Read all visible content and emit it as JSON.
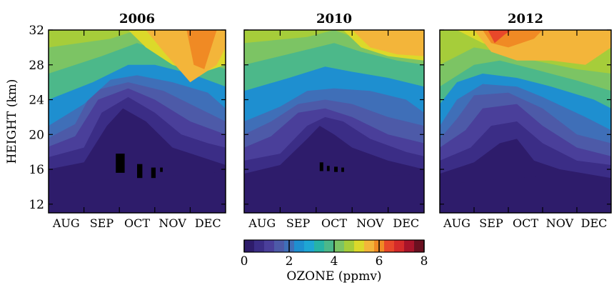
{
  "chart_data": {
    "type": "heatmap",
    "panels": [
      {
        "title": "2006"
      },
      {
        "title": "2010"
      },
      {
        "title": "2012"
      }
    ],
    "ylabel": "HEIGHT (km)",
    "ylim": [
      11,
      32
    ],
    "y_ticks": [
      12,
      16,
      20,
      24,
      28,
      32
    ],
    "x_ticks": [
      "AUG",
      "SEP",
      "OCT",
      "NOV",
      "DEC"
    ],
    "colorbar": {
      "label": "OZONE (ppmv)",
      "range": [
        0,
        8
      ],
      "ticks": [
        0,
        2,
        4,
        6,
        8
      ],
      "colors": [
        "#000000",
        "#2e1c6b",
        "#3b2d86",
        "#4a3f9a",
        "#4d5aa8",
        "#3f6fb8",
        "#1e8fd0",
        "#1ea6d4",
        "#27b3a6",
        "#4cb88a",
        "#7cc464",
        "#a6cd3a",
        "#dcd92a",
        "#f3b53a",
        "#f08a24",
        "#e8482a",
        "#d42a2a",
        "#a8142a",
        "#6a1020"
      ]
    }
  }
}
